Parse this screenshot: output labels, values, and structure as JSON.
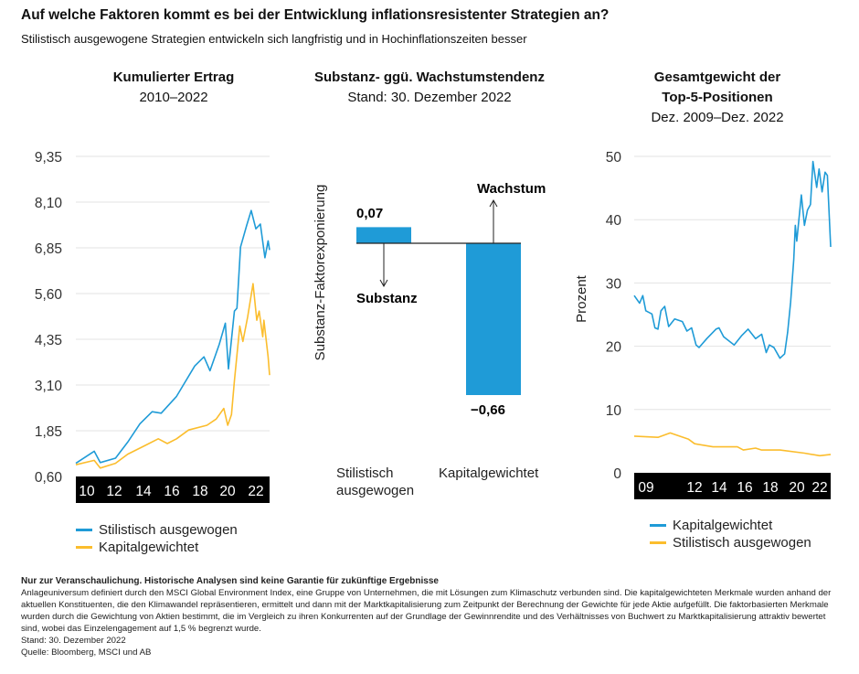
{
  "header": {
    "title": "Auf welche Faktoren kommt es bei der Entwicklung inflationsresistenter Strategien an?",
    "subtitle": "Stilistisch ausgewogene Strategien entwickeln sich langfristig und in Hochinflationszeiten besser"
  },
  "colors": {
    "blue": "#1f9bd7",
    "yellow": "#fbbd2d",
    "axis_bar": "#000000",
    "grid": "#e3e3e3"
  },
  "chart_data": [
    {
      "type": "line",
      "title": "Kumulierter Ertrag",
      "subtitle": "2010–2022",
      "ylim": [
        0.6,
        9.35
      ],
      "yticks": [
        "0,60",
        "1,85",
        "3,10",
        "4,35",
        "5,60",
        "6,85",
        "8,10",
        "9,35"
      ],
      "ytick_values": [
        0.6,
        1.85,
        3.1,
        4.35,
        5.6,
        6.85,
        8.1,
        9.35
      ],
      "xlim": [
        2010,
        2023
      ],
      "xticks": [
        "10",
        "12",
        "14",
        "16",
        "18",
        "20",
        "22"
      ],
      "xtick_years": [
        2010,
        2012,
        2014,
        2016,
        2018,
        2020,
        2022
      ],
      "grid": true,
      "legend": "bottom",
      "series": [
        {
          "name": "Stilistisch ausgewogen",
          "color": "#1f9bd7",
          "x": [
            2010.0,
            2011.23,
            2011.64,
            2012.66,
            2013.48,
            2014.3,
            2015.12,
            2015.73,
            2016.76,
            2017.98,
            2018.6,
            2019.0,
            2019.62,
            2020.03,
            2020.24,
            2020.64,
            2020.81,
            2021.05,
            2021.46,
            2021.77,
            2022.08,
            2022.38,
            2022.69,
            2022.9,
            2023.0
          ],
          "y": [
            0.96,
            1.29,
            0.98,
            1.1,
            1.54,
            2.04,
            2.37,
            2.33,
            2.79,
            3.62,
            3.87,
            3.49,
            4.21,
            4.79,
            3.54,
            5.12,
            5.2,
            6.87,
            7.46,
            7.87,
            7.37,
            7.5,
            6.58,
            7.04,
            6.79
          ]
        },
        {
          "name": "Kapitalgewichtet",
          "color": "#fbbd2d",
          "x": [
            2010.0,
            2011.23,
            2011.64,
            2012.66,
            2013.48,
            2014.71,
            2015.53,
            2016.14,
            2016.76,
            2017.57,
            2018.8,
            2019.42,
            2019.93,
            2020.19,
            2020.44,
            2020.64,
            2021.0,
            2021.21,
            2021.53,
            2021.89,
            2022.14,
            2022.3,
            2022.54,
            2022.62,
            2022.9,
            2023.0
          ],
          "y": [
            0.92,
            1.04,
            0.83,
            0.96,
            1.21,
            1.46,
            1.63,
            1.5,
            1.63,
            1.87,
            2.0,
            2.17,
            2.46,
            2.0,
            2.29,
            3.21,
            4.71,
            4.29,
            4.96,
            5.87,
            4.87,
            5.12,
            4.42,
            4.87,
            3.87,
            3.37
          ]
        }
      ]
    },
    {
      "type": "bar",
      "title": "Substanz- ggü. Wachstumstendenz",
      "subtitle": "Stand: 30. Dezember 2022",
      "ylabel": "Substanz-Faktorexponierung",
      "categories": [
        "Stilistisch ausgewogen",
        "Kapitalgewichtet"
      ],
      "values": [
        0.07,
        -0.66
      ],
      "data_labels": [
        "0,07",
        "−0,66"
      ],
      "color": "#1f9bd7",
      "annotations": {
        "up": "Wachstum",
        "down": "Substanz"
      }
    },
    {
      "type": "line",
      "title_line1": "Gesamtgewicht der",
      "title_line2": "Top-5-Positionen",
      "subtitle": "Dez. 2009–Dez. 2022",
      "ylabel": "Prozent",
      "ylim": [
        0,
        50
      ],
      "yticks": [
        "0",
        "10",
        "20",
        "30",
        "40",
        "50"
      ],
      "ytick_values": [
        0,
        10,
        20,
        30,
        40,
        50
      ],
      "xlim": [
        2009.95,
        2023
      ],
      "xticks": [
        "09",
        "12",
        "14",
        "16",
        "18",
        "20",
        "22"
      ],
      "grid": true,
      "legend": "bottom",
      "series": [
        {
          "name": "Kapitalgewichtet",
          "color": "#1f9bd7",
          "x": [
            2009.95,
            2010.31,
            2010.52,
            2010.72,
            2011.13,
            2011.33,
            2011.53,
            2011.73,
            2011.98,
            2012.24,
            2012.64,
            2013.15,
            2013.45,
            2013.76,
            2014.06,
            2014.26,
            2014.77,
            2015.38,
            2015.58,
            2015.89,
            2016.59,
            2017.1,
            2017.51,
            2018.01,
            2018.42,
            2018.72,
            2018.93,
            2019.23,
            2019.63,
            2019.94,
            2020.14,
            2020.34,
            2020.55,
            2020.65,
            2020.75,
            2021.05,
            2021.26,
            2021.46,
            2021.66,
            2021.82,
            2022.07,
            2022.23,
            2022.43,
            2022.63,
            2022.78,
            2023.0
          ],
          "y": [
            28.0,
            26.8,
            28.0,
            25.6,
            25.1,
            22.9,
            22.7,
            25.6,
            26.3,
            23.1,
            24.3,
            23.9,
            22.4,
            22.9,
            20.2,
            19.8,
            21.2,
            22.7,
            22.9,
            21.5,
            20.2,
            21.7,
            22.7,
            21.2,
            21.9,
            19.0,
            20.2,
            19.8,
            18.1,
            18.8,
            22.2,
            27.0,
            33.7,
            39.1,
            36.6,
            43.9,
            39.1,
            41.5,
            42.4,
            49.2,
            45.1,
            48.0,
            44.4,
            47.5,
            47.0,
            35.7
          ]
        },
        {
          "name": "Stilistisch ausgewogen",
          "color": "#fbbd2d",
          "x": [
            2009.95,
            2011.53,
            2012.34,
            2013.56,
            2013.96,
            2015.18,
            2016.8,
            2017.2,
            2018.01,
            2018.42,
            2019.63,
            2021.26,
            2022.27,
            2023.0
          ],
          "y": [
            5.8,
            5.6,
            6.3,
            5.3,
            4.6,
            4.1,
            4.1,
            3.6,
            3.9,
            3.6,
            3.6,
            3.1,
            2.7,
            2.9
          ]
        }
      ]
    }
  ],
  "footnote": {
    "heading": "Nur zur Veranschaulichung. Historische Analysen sind keine Garantie für zukünftige Ergebnisse",
    "body": "Anlageuniversum definiert durch den MSCI Global Environment Index, eine Gruppe von Unternehmen, die mit Lösungen zum Klimaschutz verbunden sind. Die kapitalgewichteten Merkmale wurden anhand der aktuellen Konstituenten, die den Klimawandel repräsentieren, ermittelt und dann mit der Marktkapitalisierung zum Zeitpunkt der Berechnung der Gewichte für jede Aktie aufgefüllt. Die faktorbasierten Merkmale wurden durch die Gewichtung von Aktien bestimmt, die im Vergleich zu ihren Konkurrenten auf der Grundlage der Gewinnrendite und des Verhältnisses von Buchwert zu Marktkapitalisierung attraktiv bewertet sind, wobei das Einzelengagement auf 1,5 % begrenzt wurde.",
    "date": "Stand: 30. Dezember 2022",
    "source": "Quelle: Bloomberg, MSCI und AB"
  }
}
